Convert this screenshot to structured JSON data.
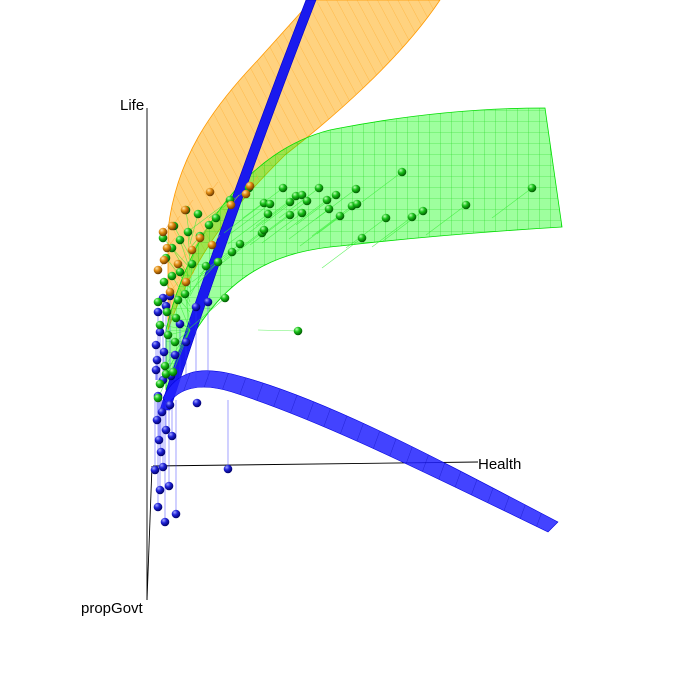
{
  "chart_data": {
    "type": "scatter",
    "title": "",
    "xlabel": "Health",
    "ylabel": "Life",
    "zlabel": "propGovt",
    "grid": false,
    "legend": "none",
    "surfaces": [
      {
        "color": "#ffa500",
        "style": "translucent mesh"
      },
      {
        "color": "#00ff00",
        "style": "translucent mesh"
      },
      {
        "color": "#0000ff",
        "style": "solid mesh"
      }
    ],
    "series": [
      {
        "color": "#0000cc",
        "points": [
          [
            158,
            507
          ],
          [
            165,
            522
          ],
          [
            176,
            514
          ],
          [
            160,
            490
          ],
          [
            163,
            467
          ],
          [
            169,
            486
          ],
          [
            155,
            470
          ],
          [
            161,
            452
          ],
          [
            159,
            440
          ],
          [
            166,
            430
          ],
          [
            172,
            436
          ],
          [
            157,
            420
          ],
          [
            162,
            412
          ],
          [
            170,
            405
          ],
          [
            158,
            396
          ],
          [
            197,
            403
          ],
          [
            228,
            469
          ],
          [
            163,
            380
          ],
          [
            156,
            370
          ],
          [
            171,
            376
          ],
          [
            157,
            360
          ],
          [
            164,
            352
          ],
          [
            175,
            355
          ],
          [
            156,
            345
          ],
          [
            186,
            342
          ],
          [
            160,
            332
          ],
          [
            180,
            324
          ],
          [
            196,
            307
          ],
          [
            208,
            302
          ],
          [
            166,
            306
          ],
          [
            158,
            312
          ],
          [
            163,
            298
          ],
          [
            170,
            296
          ]
        ]
      },
      {
        "color": "#00bb00",
        "points": [
          [
            160,
            384
          ],
          [
            166,
            374
          ],
          [
            173,
            372
          ],
          [
            158,
            398
          ],
          [
            165,
            366
          ],
          [
            175,
            342
          ],
          [
            168,
            335
          ],
          [
            160,
            325
          ],
          [
            176,
            318
          ],
          [
            167,
            312
          ],
          [
            158,
            302
          ],
          [
            178,
            300
          ],
          [
            185,
            294
          ],
          [
            164,
            282
          ],
          [
            172,
            276
          ],
          [
            180,
            272
          ],
          [
            192,
            264
          ],
          [
            206,
            266
          ],
          [
            218,
            262
          ],
          [
            232,
            252
          ],
          [
            240,
            244
          ],
          [
            262,
            233
          ],
          [
            225,
            298
          ],
          [
            166,
            258
          ],
          [
            172,
            248
          ],
          [
            180,
            240
          ],
          [
            188,
            232
          ],
          [
            200,
            236
          ],
          [
            209,
            225
          ],
          [
            216,
            218
          ],
          [
            198,
            214
          ],
          [
            186,
            210
          ],
          [
            174,
            226
          ],
          [
            163,
            238
          ],
          [
            230,
            200
          ],
          [
            249,
            188
          ],
          [
            264,
            203
          ],
          [
            268,
            214
          ],
          [
            270,
            204
          ],
          [
            290,
            202
          ],
          [
            296,
            196
          ],
          [
            283,
            188
          ],
          [
            302,
            195
          ],
          [
            319,
            188
          ],
          [
            307,
            201
          ],
          [
            302,
            213
          ],
          [
            290,
            215
          ],
          [
            327,
            200
          ],
          [
            336,
            195
          ],
          [
            340,
            216
          ],
          [
            352,
            206
          ],
          [
            356,
            189
          ],
          [
            329,
            209
          ],
          [
            357,
            204
          ],
          [
            386,
            218
          ],
          [
            412,
            217
          ],
          [
            423,
            211
          ],
          [
            402,
            172
          ],
          [
            466,
            205
          ],
          [
            532,
            188
          ],
          [
            362,
            238
          ],
          [
            264,
            230
          ],
          [
            298,
            331
          ]
        ]
      },
      {
        "color": "#dd8800",
        "points": [
          [
            158,
            270
          ],
          [
            163,
            232
          ],
          [
            167,
            248
          ],
          [
            172,
            226
          ],
          [
            185,
            210
          ],
          [
            192,
            250
          ],
          [
            200,
            238
          ],
          [
            210,
            192
          ],
          [
            231,
            205
          ],
          [
            246,
            194
          ],
          [
            250,
            186
          ],
          [
            170,
            292
          ],
          [
            178,
            264
          ],
          [
            186,
            282
          ],
          [
            164,
            260
          ],
          [
            212,
            245
          ]
        ]
      }
    ]
  }
}
